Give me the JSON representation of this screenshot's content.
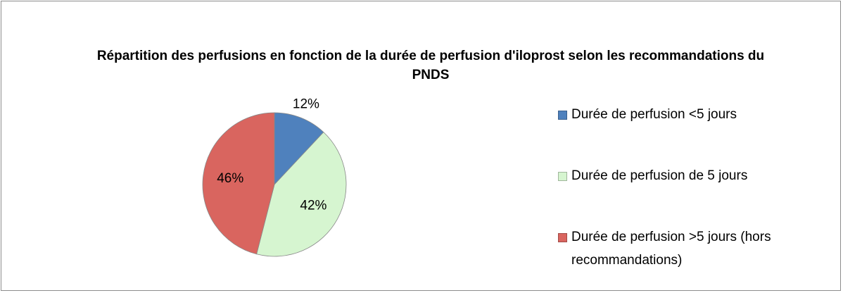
{
  "chart_data": {
    "type": "pie",
    "title": "Répartition des perfusions en fonction de la durée de perfusion d'iloprost selon les recommandations du PNDS",
    "categories": [
      "Durée de perfusion <5 jours",
      "Durée de perfusion de 5 jours",
      "Durée de perfusion >5 jours (hors recommandations)"
    ],
    "values": [
      12,
      42,
      46
    ],
    "value_labels": [
      "12%",
      "42%",
      "46%"
    ],
    "colors": [
      "#4f81bd",
      "#d6f5d0",
      "#d9655f"
    ],
    "legend": "right"
  }
}
